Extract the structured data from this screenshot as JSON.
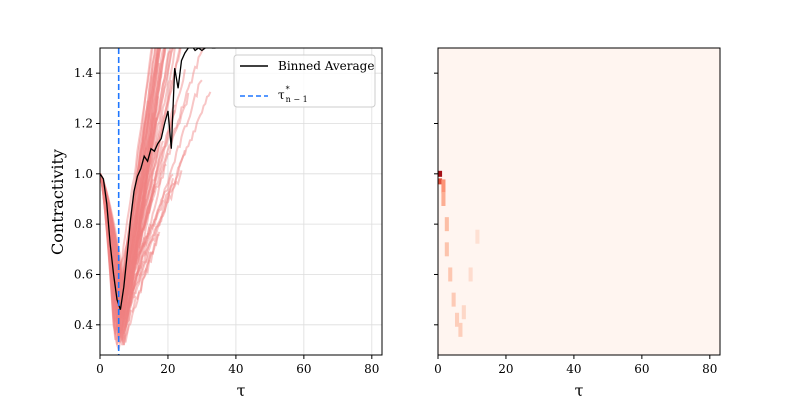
{
  "chart_data": [
    {
      "type": "line",
      "xlabel": "τ",
      "ylabel": "Contractivity",
      "xlim": [
        0,
        83
      ],
      "ylim": [
        0.28,
        1.5
      ],
      "xticks": [
        "0",
        "20",
        "40",
        "60",
        "80"
      ],
      "yticks": [
        "0.4",
        "0.6",
        "0.8",
        "1.0",
        "1.2",
        "1.4"
      ],
      "grid": true,
      "legend_position": "top-right",
      "legend": [
        {
          "label": "Binned Average",
          "style": "solid",
          "color": "#000000"
        },
        {
          "label": "τ",
          "superscript": "*",
          "subscript": "n − 1",
          "style": "dashed",
          "color": "#1f77ff"
        }
      ],
      "series": [
        {
          "name": "Binned Average",
          "color": "#000000",
          "x": [
            0,
            1,
            2,
            3,
            4,
            5,
            6,
            7,
            8,
            9,
            10,
            11,
            12,
            13,
            14,
            15,
            16,
            17,
            18,
            19,
            20,
            21,
            22,
            23,
            24,
            25,
            26,
            27,
            28,
            29,
            30,
            31,
            32,
            33,
            34
          ],
          "y": [
            1.0,
            0.98,
            0.88,
            0.72,
            0.6,
            0.5,
            0.46,
            0.55,
            0.68,
            0.82,
            0.93,
            0.99,
            1.02,
            1.07,
            1.05,
            1.1,
            1.09,
            1.12,
            1.14,
            1.2,
            1.25,
            1.1,
            1.42,
            1.34,
            1.45,
            1.48,
            1.5,
            1.51,
            1.49,
            1.5,
            1.49,
            1.5,
            1.51,
            1.5,
            1.5
          ]
        }
      ],
      "vline": {
        "x": 5.5,
        "color": "#1f77ff",
        "style": "dashed"
      },
      "individual_curves": {
        "color": "#f08080",
        "count": 70,
        "description_values": {
          "start": 1.0,
          "minimum_range": [
            0.3,
            0.55
          ],
          "minimum_x_range": [
            4,
            8
          ],
          "end_x_range": [
            20,
            34
          ]
        }
      }
    },
    {
      "type": "heatmap",
      "xlabel": "τ",
      "xlim": [
        0,
        83
      ],
      "ylim": [
        0.28,
        1.5
      ],
      "xticks": [
        "0",
        "20",
        "40",
        "60",
        "80"
      ],
      "yticks": [
        "",
        "",
        "",
        "",
        "",
        ""
      ],
      "colormap": [
        "#fff5f0",
        "#fcbba1",
        "#fb6a4a",
        "#a50f15"
      ],
      "cells": [
        {
          "x": 0,
          "y": 1.0,
          "value": 1.0
        },
        {
          "x": 0,
          "y": 0.97,
          "value": 0.6
        },
        {
          "x": 1,
          "y": 0.95,
          "value": 0.25
        },
        {
          "x": 1,
          "y": 0.9,
          "value": 0.15
        },
        {
          "x": 2,
          "y": 0.8,
          "value": 0.1
        },
        {
          "x": 2,
          "y": 0.7,
          "value": 0.08
        },
        {
          "x": 3,
          "y": 0.6,
          "value": 0.07
        },
        {
          "x": 4,
          "y": 0.5,
          "value": 0.06
        },
        {
          "x": 5,
          "y": 0.42,
          "value": 0.05
        },
        {
          "x": 6,
          "y": 0.38,
          "value": 0.05
        },
        {
          "x": 7,
          "y": 0.45,
          "value": 0.03
        },
        {
          "x": 9,
          "y": 0.6,
          "value": 0.02
        },
        {
          "x": 11,
          "y": 0.75,
          "value": 0.015
        }
      ]
    }
  ]
}
